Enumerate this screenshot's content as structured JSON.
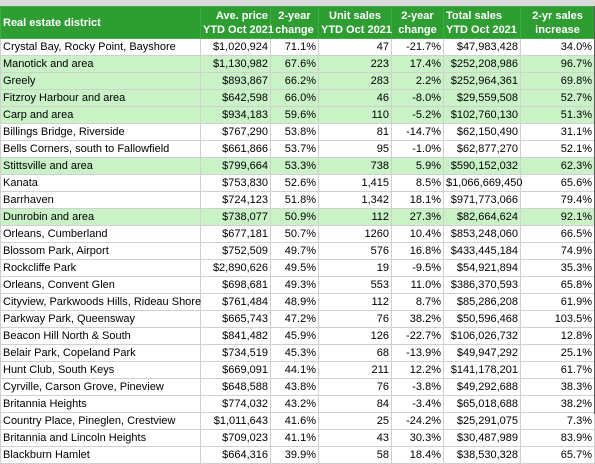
{
  "colors": {
    "header_bg": "#2e9e33",
    "highlight_row": "#c9f2c7"
  },
  "headers": [
    [
      "Real estate district"
    ],
    [
      "Ave. price",
      "YTD Oct 2021"
    ],
    [
      "2-year",
      "change"
    ],
    [
      "Unit sales",
      "YTD Oct 2021"
    ],
    [
      "2-year",
      "change"
    ],
    [
      "Total sales",
      "YTD Oct 2021"
    ],
    [
      "2-yr sales",
      "increase"
    ]
  ],
  "rows": [
    {
      "hl": false,
      "cells": [
        "Crystal Bay, Rocky Point, Bayshore",
        "$1,020,924",
        "71.1%",
        "47",
        "-21.7%",
        "$47,983,428",
        "34.0%"
      ]
    },
    {
      "hl": true,
      "cells": [
        "Manotick and area",
        "$1,130,982",
        "67.6%",
        "223",
        "17.4%",
        "$252,208,986",
        "96.7%"
      ]
    },
    {
      "hl": true,
      "cells": [
        "Greely",
        "$893,867",
        "66.2%",
        "283",
        "2.2%",
        "$252,964,361",
        "69.8%"
      ]
    },
    {
      "hl": true,
      "cells": [
        "Fitzroy Harbour and area",
        "$642,598",
        "66.0%",
        "46",
        "-8.0%",
        "$29,559,508",
        "52.7%"
      ]
    },
    {
      "hl": true,
      "cells": [
        "Carp and area",
        "$934,183",
        "59.6%",
        "110",
        "-5.2%",
        "$102,760,130",
        "51.3%"
      ]
    },
    {
      "hl": false,
      "cells": [
        "Billings Bridge, Riverside",
        "$767,290",
        "53.8%",
        "81",
        "-14.7%",
        "$62,150,490",
        "31.1%"
      ]
    },
    {
      "hl": false,
      "cells": [
        "Bells Corners, south to Fallowfield",
        "$661,866",
        "53.7%",
        "95",
        "-1.0%",
        "$62,877,270",
        "52.1%"
      ]
    },
    {
      "hl": true,
      "cells": [
        "Stittsville and area",
        "$799,664",
        "53.3%",
        "738",
        "5.9%",
        "$590,152,032",
        "62.3%"
      ]
    },
    {
      "hl": false,
      "cells": [
        "Kanata",
        "$753,830",
        "52.6%",
        "1,415",
        "8.5%",
        "$1,066,669,450",
        "65.6%"
      ]
    },
    {
      "hl": false,
      "cells": [
        "Barrhaven",
        "$724,123",
        "51.8%",
        "1,342",
        "18.1%",
        "$971,773,066",
        "79.4%"
      ]
    },
    {
      "hl": true,
      "cells": [
        "Dunrobin and area",
        "$738,077",
        "50.9%",
        "112",
        "27.3%",
        "$82,664,624",
        "92.1%"
      ]
    },
    {
      "hl": false,
      "cells": [
        "Orleans, Cumberland",
        "$677,181",
        "50.7%",
        "1260",
        "10.4%",
        "$853,248,060",
        "66.5%"
      ]
    },
    {
      "hl": false,
      "cells": [
        "Blossom Park, Airport",
        "$752,509",
        "49.7%",
        "576",
        "16.8%",
        "$433,445,184",
        "74.9%"
      ]
    },
    {
      "hl": false,
      "cells": [
        "Rockcliffe Park",
        "$2,890,626",
        "49.5%",
        "19",
        "-9.5%",
        "$54,921,894",
        "35.3%"
      ]
    },
    {
      "hl": false,
      "cells": [
        "Orleans, Convent Glen",
        "$698,681",
        "49.3%",
        "553",
        "11.0%",
        "$386,370,593",
        "65.8%"
      ]
    },
    {
      "hl": false,
      "cells": [
        "Cityview, Parkwoods Hills, Rideau Shore",
        "$761,484",
        "48.9%",
        "112",
        "8.7%",
        "$85,286,208",
        "61.9%"
      ]
    },
    {
      "hl": false,
      "cells": [
        "Parkway Park, Queensway",
        "$665,743",
        "47.2%",
        "76",
        "38.2%",
        "$50,596,468",
        "103.5%"
      ]
    },
    {
      "hl": false,
      "cells": [
        "Beacon Hill North & South",
        "$841,482",
        "45.9%",
        "126",
        "-22.7%",
        "$106,026,732",
        "12.8%"
      ]
    },
    {
      "hl": false,
      "cells": [
        "Belair Park, Copeland Park",
        "$734,519",
        "45.3%",
        "68",
        "-13.9%",
        "$49,947,292",
        "25.1%"
      ]
    },
    {
      "hl": false,
      "cells": [
        "Hunt Club, South Keys",
        "$669,091",
        "44.1%",
        "211",
        "12.2%",
        "$141,178,201",
        "61.7%"
      ]
    },
    {
      "hl": false,
      "cells": [
        "Cyrville, Carson Grove, Pineview",
        "$648,588",
        "43.8%",
        "76",
        "-3.8%",
        "$49,292,688",
        "38.3%"
      ]
    },
    {
      "hl": false,
      "cells": [
        "Britannia Heights",
        "$774,032",
        "43.2%",
        "84",
        "-3.4%",
        "$65,018,688",
        "38.2%"
      ]
    },
    {
      "hl": false,
      "cells": [
        "Country Place, Pineglen, Crestview",
        "$1,011,643",
        "41.6%",
        "25",
        "-24.2%",
        "$25,291,075",
        "7.3%"
      ]
    },
    {
      "hl": false,
      "cells": [
        "Britannia and Lincoln Heights",
        "$709,023",
        "41.1%",
        "43",
        "30.3%",
        "$30,487,989",
        "83.9%"
      ]
    },
    {
      "hl": false,
      "cells": [
        "Blackburn Hamlet",
        "$664,316",
        "39.9%",
        "58",
        "18.4%",
        "$38,530,328",
        "65.7%"
      ]
    }
  ]
}
